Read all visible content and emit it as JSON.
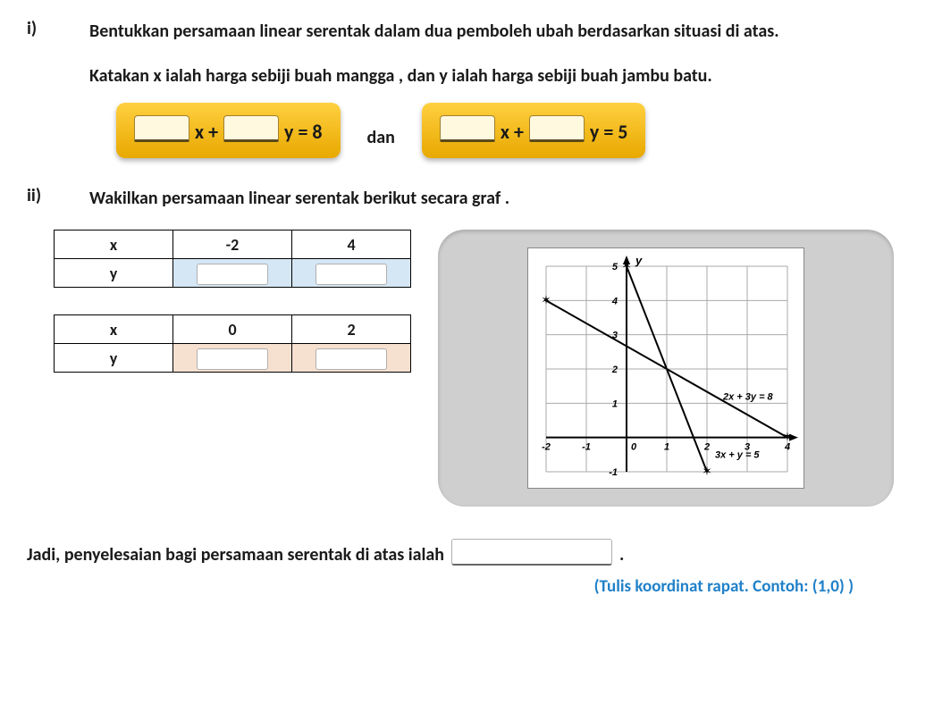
{
  "qi": {
    "label": "i)",
    "text": "Bentukkan persamaan linear serentak dalam dua pemboleh ubah berdasarkan situasi di atas.",
    "text2": "Katakan x ialah harga sebiji buah mangga ,  dan   y ialah harga sebiji buah jambu batu."
  },
  "equations": {
    "eq1": {
      "mid": "x +",
      "suffix": "y = 8"
    },
    "dan": "dan",
    "eq2": {
      "mid": "x +",
      "suffix": "y = 5"
    }
  },
  "qii": {
    "label": "ii)",
    "text": "Wakilkan persamaan linear serentak berikut secara graf ."
  },
  "table1": {
    "x_values": [
      "-2",
      "4"
    ],
    "fill_color": "#d5e6f5"
  },
  "table2": {
    "x_values": [
      "0",
      "2"
    ],
    "fill_color": "#f6e0d0"
  },
  "graph": {
    "x_range": [
      -2,
      4
    ],
    "y_range": [
      -1,
      5
    ],
    "x_ticks": [
      -2,
      -1,
      0,
      1,
      2,
      3,
      4
    ],
    "y_ticks": [
      -1,
      1,
      2,
      3,
      4,
      5
    ],
    "lines": [
      {
        "label": "2x + 3y = 8",
        "p1": [
          -2,
          4
        ],
        "p2": [
          4,
          0
        ],
        "color": "#000",
        "label_pos": [
          2.4,
          1.1
        ]
      },
      {
        "label": "3x + y = 5",
        "p1": [
          0,
          5
        ],
        "p2": [
          2,
          -1
        ],
        "color": "#000",
        "label_pos": [
          2.2,
          -0.6
        ]
      }
    ],
    "y_axis_label": "y",
    "origin_label": "0",
    "grid_color": "#aaa",
    "arrow_color": "#000",
    "font_size": 11
  },
  "final": {
    "text": "Jadi, penyelesaian bagi persamaan serentak di atas ialah",
    "end": "."
  },
  "hint": "(Tulis koordinat rapat. Contoh: (1,0) )"
}
